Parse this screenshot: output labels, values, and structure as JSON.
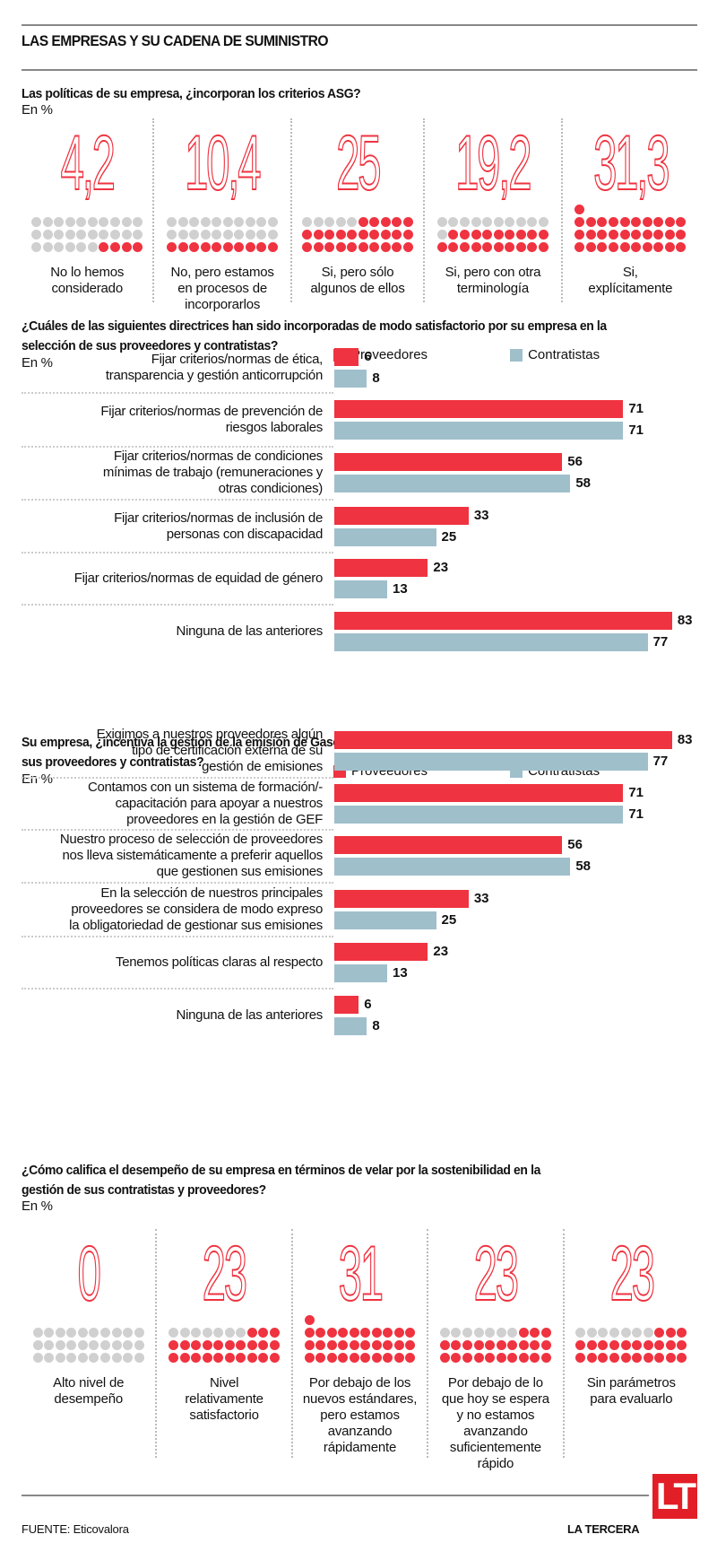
{
  "title": "LAS EMPRESAS Y SU CADENA DE SUMINISTRO",
  "colors": {
    "red": "#ef3340",
    "blue": "#9fbfcb",
    "grey_dot": "#d0d0d0",
    "brand": "#e21e26"
  },
  "legend": {
    "proveedores": "Proveedores",
    "contratistas": "Contratistas"
  },
  "unit_label": "En %",
  "chart_data": [
    {
      "type": "pictogram",
      "title": "Las políticas de su empresa, ¿incorporan los criterios ASG?",
      "unit": "En %",
      "categories": [
        "No lo hemos considerado",
        "No, pero estamos en procesos de incorporarlos",
        "Si, pero sólo algunos de ellos",
        "Si, pero con otra terminología",
        "Si, explícitamente"
      ],
      "display_values": [
        "4,2",
        "10,4",
        "25",
        "19,2",
        "31,3"
      ],
      "values": [
        4.2,
        10.4,
        25,
        19.2,
        31.3
      ],
      "dots_filled": [
        4,
        10,
        25,
        19,
        31
      ]
    },
    {
      "type": "bar",
      "title": "¿Cuáles de las siguientes directrices han sido incorporadas de modo satisfactorio por su empresa en la selección de sus proveedores y contratistas?",
      "unit": "En %",
      "categories": [
        "Fijar criterios/normas de ética, transparencia y gestión anticorrupción",
        "Fijar criterios/normas de prevención de riesgos laborales",
        "Fijar criterios/normas de condiciones mínimas de trabajo (remuneraciones y otras condiciones)",
        "Fijar criterios/normas de inclusión de personas con discapacidad",
        "Fijar criterios/normas de equidad de género",
        "Ninguna de las anteriores"
      ],
      "series": [
        {
          "name": "Proveedores",
          "values": [
            6,
            71,
            56,
            33,
            23,
            83
          ]
        },
        {
          "name": "Contratistas",
          "values": [
            8,
            71,
            58,
            25,
            13,
            77
          ]
        }
      ],
      "legend": "top-right"
    },
    {
      "type": "bar",
      "title": "Su empresa, ¿incentiva la gestión de la emisión de Gases de Efecto Invernadero de sus proveedores y contratistas?",
      "unit": "En %",
      "categories": [
        "Exigimos a nuestros proveedores algún tipo de certificación externa de su gestión de emisiones",
        "Contamos con un sistema de formación/-capacitación para apoyar a nuestros proveedores en la gestión de GEF",
        "Nuestro proceso de selección de proveedores nos lleva sistemáticamente a preferir aquellos que gestionen sus emisiones",
        "En la selección de nuestros principales proveedores se considera de modo expreso la obligatoriedad de gestionar sus emisiones",
        "Tenemos políticas claras al respecto",
        "Ninguna de las anteriores"
      ],
      "series": [
        {
          "name": "Proveedores",
          "values": [
            83,
            71,
            56,
            33,
            23,
            6
          ]
        },
        {
          "name": "Contratistas",
          "values": [
            77,
            71,
            58,
            25,
            13,
            8
          ]
        }
      ],
      "legend": "top-right"
    },
    {
      "type": "pictogram",
      "title": "¿Cómo califica el desempeño de su empresa en términos de velar por la sostenibilidad en la gestión de sus contratistas y proveedores?",
      "unit": "En %",
      "categories": [
        "Alto nivel de desempeño",
        "Nivel relativamente satisfactorio",
        "Por debajo de los nuevos estándares, pero estamos avanzando rápidamente",
        "Por debajo de lo que hoy se espera y no estamos avanzando suficientemente rápido",
        "Sin parámetros para evaluarlo"
      ],
      "display_values": [
        "0",
        "23",
        "31",
        "23",
        "23"
      ],
      "values": [
        0,
        23,
        31,
        23,
        23
      ],
      "dots_filled": [
        0,
        23,
        31,
        23,
        23
      ]
    }
  ],
  "q1": {
    "question": "Las políticas de su empresa, ¿incorporan los criterios ASG?",
    "label_lines": [
      [
        "No lo hemos",
        "considerado"
      ],
      [
        "No, pero estamos",
        "en procesos de",
        "incorporarlos"
      ],
      [
        "Si, pero sólo",
        "algunos de ellos"
      ],
      [
        "Si, pero con otra",
        "terminología"
      ],
      [
        "Si,",
        "explícitamente"
      ]
    ]
  },
  "q2": {
    "question_lines": [
      "¿Cuáles de las siguientes directrices han sido incorporadas de modo satisfactorio por su empresa en la",
      "selección de sus proveedores y contratistas?"
    ],
    "label_lines": [
      [
        "Fijar criterios/normas de ética,",
        "transparencia y gestión anticorrupción"
      ],
      [
        "Fijar criterios/normas de prevención de",
        "riesgos laborales"
      ],
      [
        "Fijar criterios/normas de condiciones",
        "mínimas de trabajo (remuneraciones y",
        "otras condiciones)"
      ],
      [
        "Fijar criterios/normas de inclusión de",
        "personas con discapacidad"
      ],
      [
        "Fijar criterios/normas de equidad de género"
      ],
      [
        "Ninguna de las anteriores"
      ]
    ]
  },
  "q3": {
    "question_lines": [
      "Su empresa, ¿incentiva la gestión de la emisión de Gases de Efecto Invernadero de",
      "sus proveedores y contratistas?"
    ],
    "label_lines": [
      [
        "Exigimos a nuestros proveedores algún",
        "tipo de certificación externa de su",
        "gestión de emisiones"
      ],
      [
        "Contamos con un sistema de formación/-",
        "capacitación para apoyar a nuestros",
        "proveedores en la gestión de GEF"
      ],
      [
        "Nuestro proceso de selección de proveedores",
        "nos lleva sistemáticamente a preferir aquellos",
        "que gestionen sus emisiones"
      ],
      [
        "En la selección de nuestros principales",
        "proveedores se considera de modo expreso",
        "la obligatoriedad de gestionar sus emisiones"
      ],
      [
        "Tenemos políticas claras al respecto"
      ],
      [
        "Ninguna de las anteriores"
      ]
    ]
  },
  "q4": {
    "question_lines": [
      "¿Cómo califica el desempeño de su empresa en términos de velar por la sostenibilidad en la",
      "gestión de sus contratistas y proveedores?"
    ],
    "label_lines": [
      [
        "Alto nivel de",
        "desempeño"
      ],
      [
        "Nivel",
        "relativamente",
        "satisfactorio"
      ],
      [
        "Por debajo de los",
        "nuevos estándares,",
        "pero estamos",
        "avanzando",
        "rápidamente"
      ],
      [
        "Por debajo de lo",
        "que hoy se espera",
        "y no estamos",
        "avanzando",
        "suficientemente",
        "rápido"
      ],
      [
        "Sin parámetros",
        "para evaluarlo"
      ]
    ]
  },
  "footer": {
    "source": "FUENTE: Eticovalora",
    "brand": "LA TERCERA",
    "logo": "LT"
  }
}
